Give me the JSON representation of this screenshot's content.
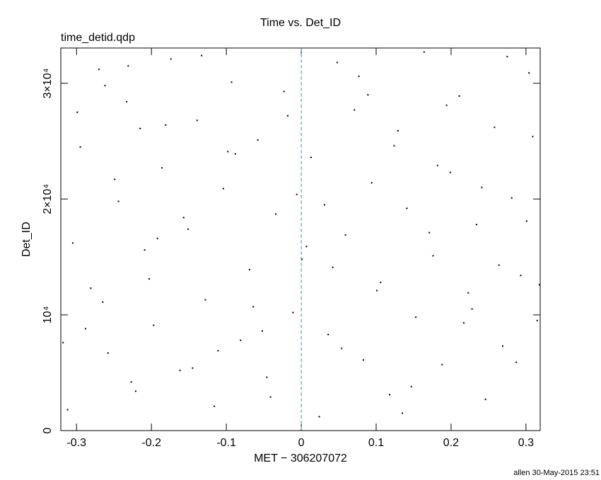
{
  "chart_data": {
    "type": "scatter",
    "title": "Time vs. Det_ID",
    "subtitle": "time_detid.qdp",
    "x_label": "MET − 306207072",
    "y_label": "Det_ID",
    "footer": "allen 30-May-2015 23:51",
    "color": "#000000",
    "vline": 0,
    "vline_color": "#2a9d9d",
    "xlim": [
      -0.321,
      0.319
    ],
    "ylim": [
      0,
      33050
    ],
    "xticks": [
      -0.3,
      -0.2,
      -0.1,
      0,
      0.1,
      0.2,
      0.3
    ],
    "yticks": [
      0,
      {
        "value": 10000,
        "label": "10⁴"
      },
      {
        "value": 20000,
        "label": "2×10⁴"
      },
      {
        "value": 30000,
        "label": "3×10⁴"
      }
    ],
    "x": [
      -0.312,
      -0.295,
      -0.281,
      -0.27,
      -0.258,
      -0.244,
      -0.233,
      -0.221,
      -0.209,
      -0.197,
      -0.186,
      -0.174,
      -0.162,
      -0.151,
      -0.139,
      -0.128,
      -0.116,
      -0.104,
      -0.093,
      -0.081,
      -0.069,
      -0.058,
      -0.046,
      -0.034,
      -0.023,
      -0.011,
      0.001,
      0.013,
      0.024,
      0.036,
      0.048,
      0.059,
      0.071,
      0.083,
      0.094,
      0.106,
      0.118,
      0.129,
      0.141,
      0.153,
      0.164,
      0.176,
      0.188,
      0.199,
      0.211,
      0.223,
      0.234,
      0.246,
      0.258,
      0.269,
      0.281,
      0.293,
      0.304,
      0.315,
      -0.305,
      -0.288,
      -0.262,
      -0.249,
      -0.227,
      -0.203,
      -0.181,
      -0.157,
      -0.133,
      -0.111,
      -0.088,
      -0.064,
      -0.041,
      -0.018,
      0.007,
      0.031,
      0.054,
      0.077,
      0.101,
      0.124,
      0.147,
      0.171,
      0.194,
      0.217,
      0.241,
      0.264,
      0.287,
      0.309,
      -0.299,
      -0.265,
      -0.231,
      -0.192,
      -0.145,
      -0.098,
      -0.052,
      -0.006,
      0.042,
      0.089,
      0.135,
      0.182,
      0.228,
      0.275,
      0.301,
      -0.318,
      0.318,
      -0.215
    ],
    "values": [
      1800,
      24500,
      12300,
      31200,
      6700,
      19800,
      28400,
      3400,
      15600,
      9100,
      22700,
      32100,
      5200,
      17400,
      26800,
      11300,
      2100,
      20900,
      30100,
      7800,
      13900,
      25100,
      4600,
      18700,
      29300,
      10200,
      14800,
      23600,
      1200,
      8300,
      31800,
      16900,
      27700,
      6100,
      21400,
      12800,
      3100,
      25900,
      19200,
      9800,
      32700,
      15100,
      5700,
      22300,
      28900,
      11900,
      17800,
      2700,
      26200,
      7300,
      20100,
      13400,
      30900,
      9500,
      16200,
      8800,
      29800,
      21700,
      4200,
      13100,
      26400,
      18400,
      32400,
      6900,
      23900,
      10700,
      2900,
      27200,
      15900,
      19500,
      7100,
      30600,
      12100,
      24600,
      3800,
      17100,
      28100,
      9300,
      21000,
      14300,
      5900,
      25400,
      27500,
      11100,
      31500,
      16600,
      5400,
      24100,
      8600,
      20400,
      14100,
      29000,
      1500,
      22900,
      10500,
      32300,
      18100,
      7600,
      12600,
      26100
    ]
  }
}
